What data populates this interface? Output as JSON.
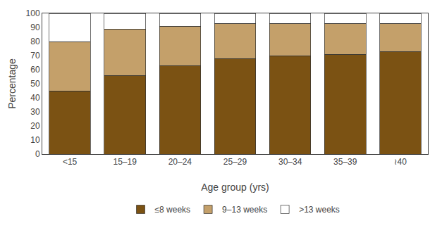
{
  "chart_data": {
    "type": "bar",
    "stacked": true,
    "xlabel": "Age group (yrs)",
    "ylabel": "Percentage",
    "categories": [
      "<15",
      "15–19",
      "20–24",
      "25–29",
      "30–34",
      "35–39",
      "≀40"
    ],
    "series": [
      {
        "name": "≤8 weeks",
        "color": "#7B5213",
        "values": [
          45,
          56,
          63,
          68,
          70,
          71,
          73
        ]
      },
      {
        "name": "9–13 weeks",
        "color": "#C4A06A",
        "values": [
          35,
          33,
          28,
          25,
          23,
          22,
          20
        ]
      },
      {
        "name": ">13 weeks",
        "color": "#FFFFFF",
        "values": [
          20,
          11,
          9,
          7,
          7,
          7,
          7
        ]
      }
    ],
    "ylim": [
      0,
      100
    ],
    "yticks": [
      0,
      10,
      20,
      30,
      40,
      50,
      60,
      70,
      80,
      90,
      100
    ],
    "grid": false,
    "legend": "bottom"
  }
}
